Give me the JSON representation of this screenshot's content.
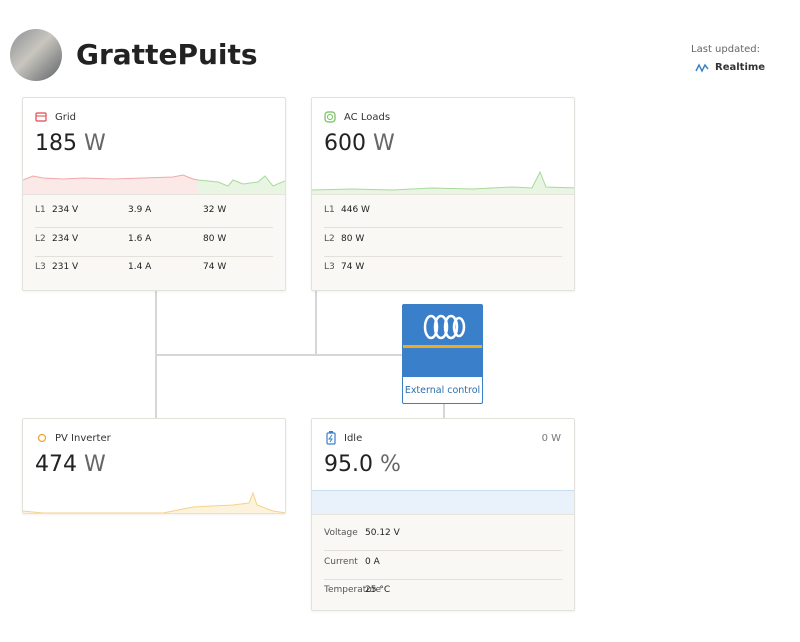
{
  "header": {
    "title": "GrattePuits",
    "last_updated_label": "Last updated:",
    "status": "Realtime"
  },
  "grid": {
    "title": "Grid",
    "value": "185",
    "unit": "W",
    "rows": [
      [
        "L1",
        "234 V",
        "3.9 A",
        "32 W"
      ],
      [
        "L2",
        "234 V",
        "1.6 A",
        "80 W"
      ],
      [
        "L3",
        "231 V",
        "1.4 A",
        "74 W"
      ]
    ]
  },
  "ac_loads": {
    "title": "AC Loads",
    "value": "600",
    "unit": "W",
    "rows": [
      [
        "L1",
        "446 W"
      ],
      [
        "L2",
        "80 W"
      ],
      [
        "L3",
        "74 W"
      ]
    ]
  },
  "pv_inverter": {
    "title": "PV Inverter",
    "value": "474",
    "unit": "W"
  },
  "inverter": {
    "label": "External control"
  },
  "battery": {
    "title": "Idle",
    "power": "0 W",
    "value": "95.0",
    "unit": "%",
    "rows": [
      [
        "Voltage",
        "50.12 V"
      ],
      [
        "Current",
        "0 A"
      ],
      [
        "Temperature",
        "25 °C"
      ]
    ]
  }
}
